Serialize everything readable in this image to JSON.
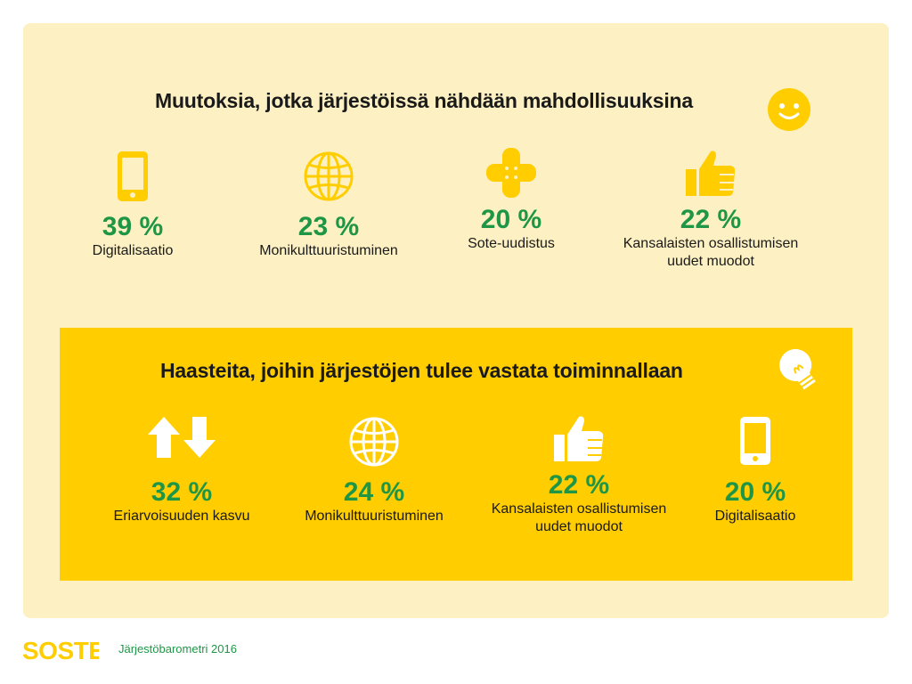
{
  "colors": {
    "accent_green": "#1f9646",
    "brand_yellow": "#ffcd00",
    "panel_bg": "#fdf1c3"
  },
  "opportunities": {
    "title": "Muutoksia, jotka järjestöissä nähdään mahdollisuuksina",
    "title_icon": "smiley-icon",
    "items": [
      {
        "value": "39 %",
        "label": "Digitalisaatio",
        "icon": "phone-icon"
      },
      {
        "value": "23 %",
        "label": "Monikulttuuristuminen",
        "icon": "globe-icon"
      },
      {
        "value": "20 %",
        "label": "Sote-uudistus",
        "icon": "bandage-icon"
      },
      {
        "value": "22 %",
        "label": "Kansalaisten osallistumisen\nuudet muodot",
        "icon": "thumbs-up-icon"
      }
    ]
  },
  "challenges": {
    "title": "Haasteita, joihin järjestöjen tulee vastata toiminnallaan",
    "title_icon": "light-bulb-icon",
    "items": [
      {
        "value": "32 %",
        "label": "Eriarvoisuuden kasvu",
        "icon": "up-down-arrows-icon"
      },
      {
        "value": "24 %",
        "label": "Monikulttuuristuminen",
        "icon": "globe-icon"
      },
      {
        "value": "22 %",
        "label": "Kansalaisten osallistumisen\nuudet muodot",
        "icon": "thumbs-up-icon"
      },
      {
        "value": "20 %",
        "label": "Digitalisaatio",
        "icon": "phone-icon"
      }
    ]
  },
  "footer": {
    "logo": "SOSTE",
    "source": "Järjestöbarometri 2016"
  }
}
